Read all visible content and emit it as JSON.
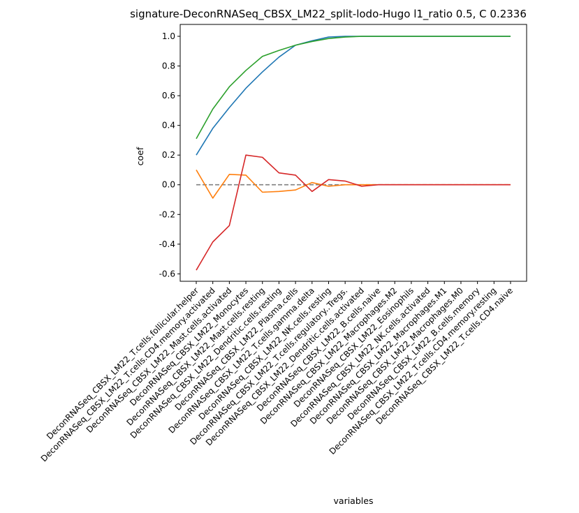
{
  "chart_data": {
    "type": "line",
    "title": "signature-DeconRNASeq_CBSX_LM22_split-lodo-Hugo l1_ratio 0.5, C 0.2336",
    "xlabel": "variables",
    "ylabel": "coef",
    "ylim": [
      -0.65,
      1.08
    ],
    "yticks": [
      "-0.6",
      "-0.4",
      "-0.2",
      "0.0",
      "0.2",
      "0.4",
      "0.6",
      "0.8",
      "1.0"
    ],
    "grid": false,
    "legend": "none",
    "categories": [
      "DeconRNASeq_CBSX_LM22_T.cells.follicular.helper",
      "DeconRNASeq_CBSX_LM22_T.cells.CD4.memory.activated",
      "DeconRNASeq_CBSX_LM22_Mast.cells.activated",
      "DeconRNASeq_CBSX_LM22_Monocytes",
      "DeconRNASeq_CBSX_LM22_Mast.cells.resting",
      "DeconRNASeq_CBSX_LM22_Dendritic.cells.resting",
      "DeconRNASeq_CBSX_LM22_Plasma.cells",
      "DeconRNASeq_CBSX_LM22_T.cells.gamma.delta",
      "DeconRNASeq_CBSX_LM22_NK.cells.resting",
      "DeconRNASeq_CBSX_LM22_T.cells.regulatory..Tregs.",
      "DeconRNASeq_CBSX_LM22_Dendritic.cells.activated",
      "DeconRNASeq_CBSX_LM22_B.cells.naive",
      "DeconRNASeq_CBSX_LM22_Macrophages.M2",
      "DeconRNASeq_CBSX_LM22_Eosinophils",
      "DeconRNASeq_CBSX_LM22_NK.cells.activated",
      "DeconRNASeq_CBSX_LM22_Macrophages.M1",
      "DeconRNASeq_CBSX_LM22_Macrophages.M0",
      "DeconRNASeq_CBSX_LM22_B.cells.memory",
      "DeconRNASeq_CBSX_LM22_T.cells.CD4.memory.resting",
      "DeconRNASeq_CBSX_LM22_T.cells.CD4.naive"
    ],
    "series": [
      {
        "color": "#1f77b4",
        "values": [
          0.2,
          0.38,
          0.52,
          0.65,
          0.76,
          0.86,
          0.94,
          0.97,
          0.995,
          1.0,
          1.0,
          1.0,
          1.0,
          1.0,
          1.0,
          1.0,
          1.0,
          1.0,
          1.0,
          1.0
        ]
      },
      {
        "color": "#ff7f0e",
        "values": [
          0.1,
          -0.09,
          0.07,
          0.065,
          -0.05,
          -0.045,
          -0.035,
          0.015,
          -0.01,
          0.0,
          0.0,
          0.0,
          0.0,
          0.0,
          0.0,
          0.0,
          0.0,
          0.0,
          0.0,
          0.0
        ]
      },
      {
        "color": "#2ca02c",
        "values": [
          0.31,
          0.51,
          0.66,
          0.77,
          0.865,
          0.905,
          0.94,
          0.965,
          0.985,
          0.995,
          1.0,
          1.0,
          1.0,
          1.0,
          1.0,
          1.0,
          1.0,
          1.0,
          1.0,
          1.0
        ]
      },
      {
        "color": "#d62728",
        "values": [
          -0.575,
          -0.385,
          -0.275,
          0.2,
          0.185,
          0.08,
          0.065,
          -0.045,
          0.035,
          0.025,
          -0.01,
          0.0,
          0.0,
          0.0,
          0.0,
          0.0,
          0.0,
          0.0,
          0.0,
          0.0
        ]
      }
    ],
    "reference_line": {
      "y": 0.0,
      "color": "#808080",
      "style": "dashed"
    }
  }
}
